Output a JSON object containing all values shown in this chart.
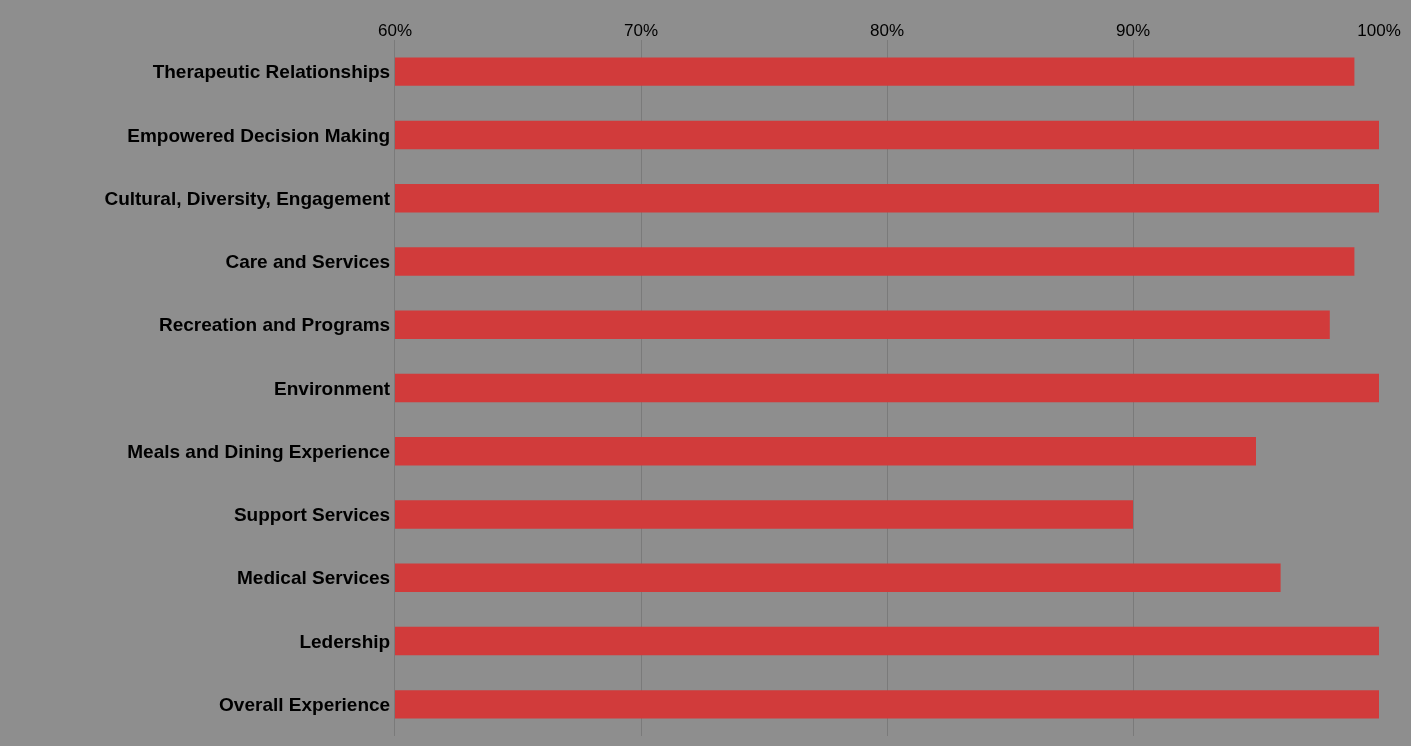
{
  "chart_data": {
    "type": "bar",
    "orientation": "horizontal",
    "categories": [
      "Therapeutic Relationships",
      "Empowered Decision Making",
      "Cultural, Diversity, Engagement",
      "Care and Services",
      "Recreation and Programs",
      "Environment",
      "Meals and Dining Experience",
      "Support Services",
      "Medical Services",
      "Ledership",
      "Overall Experience"
    ],
    "values": [
      99,
      100,
      100,
      99,
      98,
      100,
      95,
      90,
      96,
      100,
      100
    ],
    "color": "#d13b3b",
    "xlim": [
      60,
      100
    ],
    "xticks": [
      {
        "value": 60,
        "label": "60%"
      },
      {
        "value": 70,
        "label": "70%"
      },
      {
        "value": 80,
        "label": "80%"
      },
      {
        "value": 90,
        "label": "90%"
      },
      {
        "value": 100,
        "label": "100%"
      }
    ],
    "grid": "x",
    "legend": false
  }
}
